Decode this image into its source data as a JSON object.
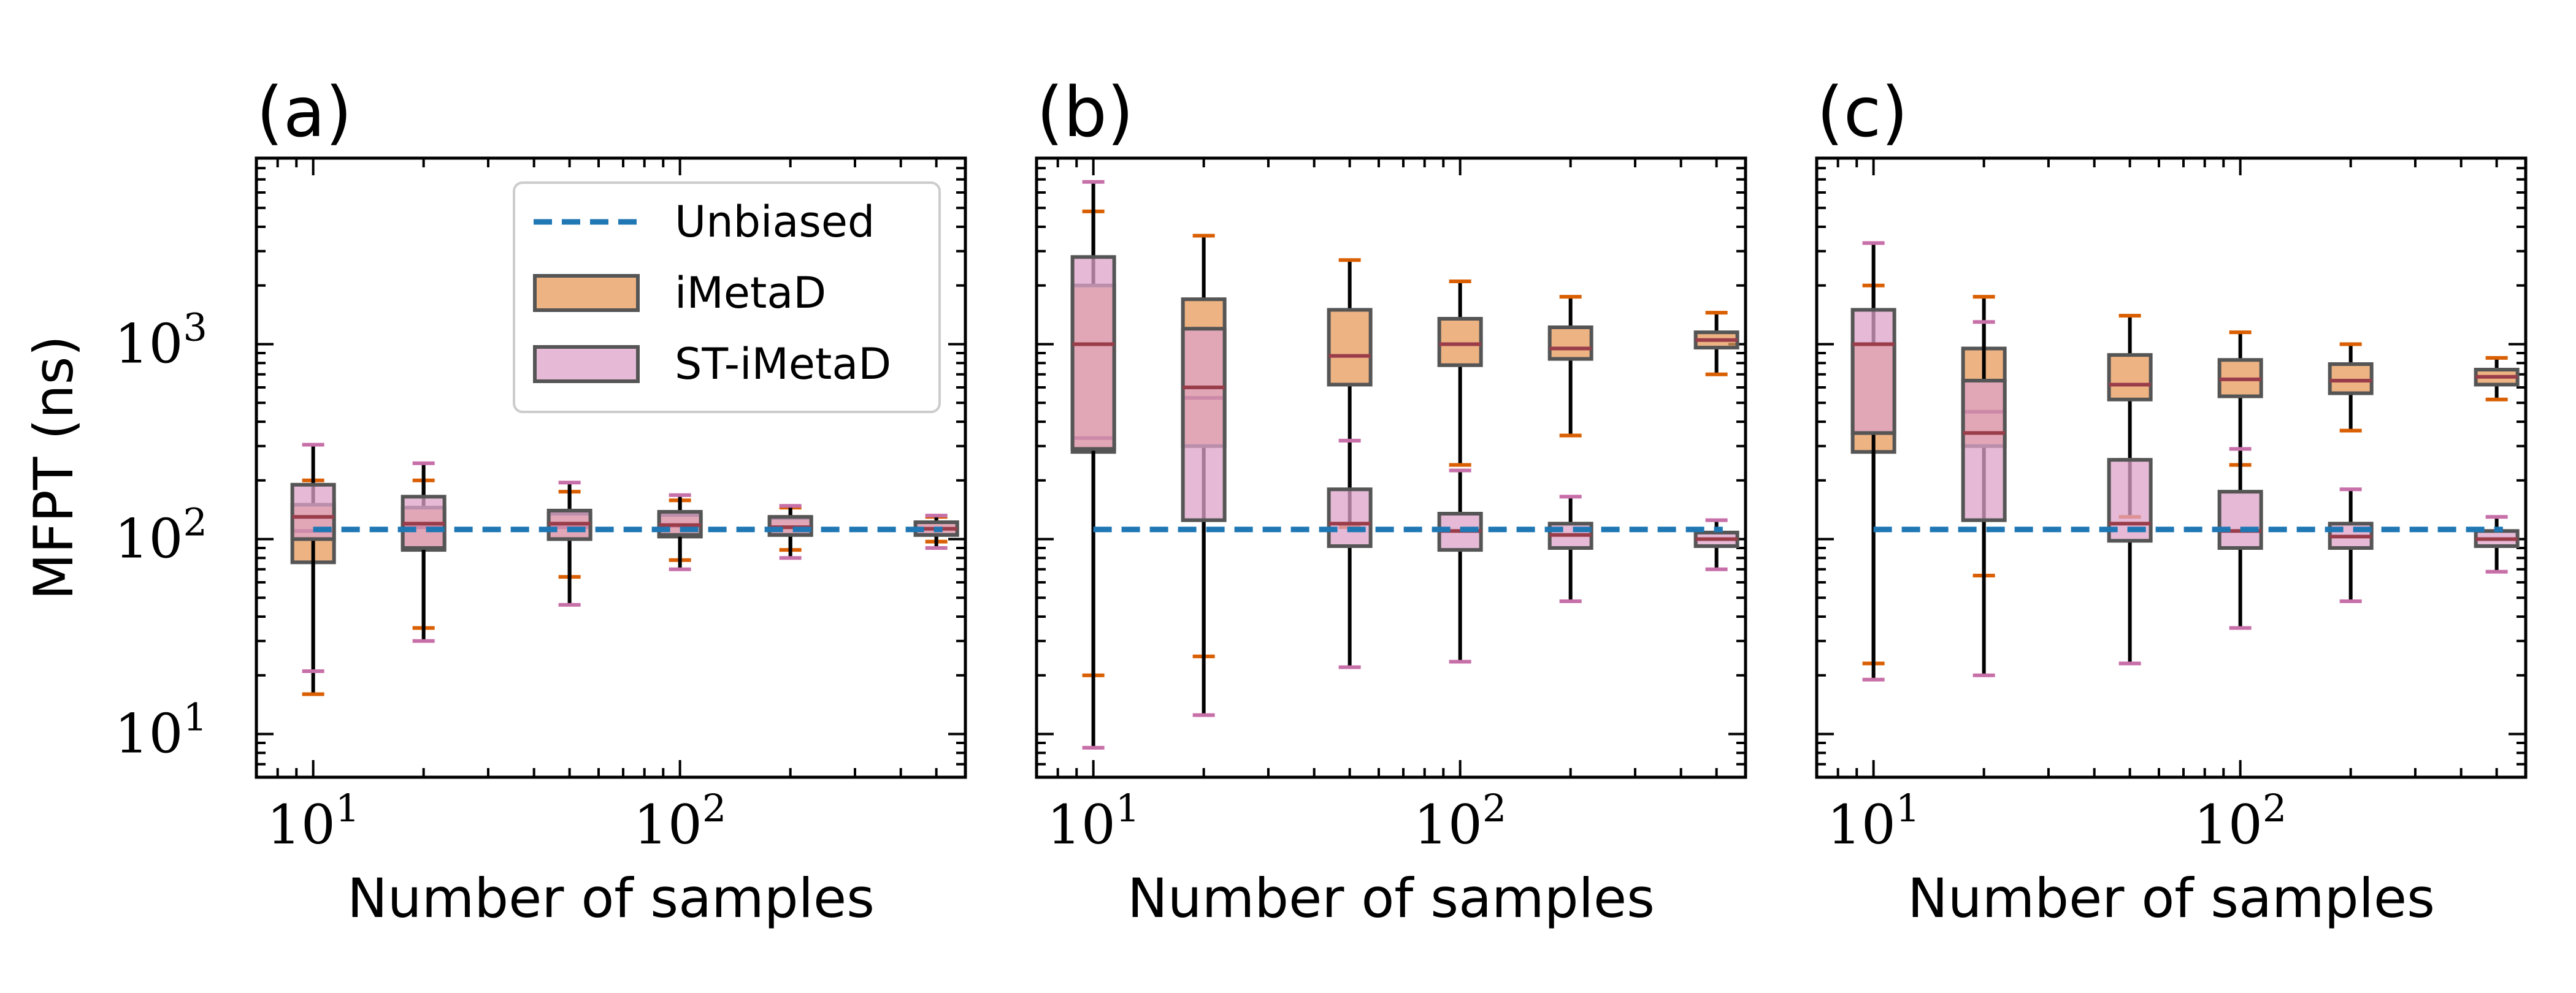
{
  "figure": {
    "ylabel": "MFPT (ns)",
    "colors": {
      "unbiased": "#1f77b4",
      "imetad_fill": "#e8995a",
      "imetad_cap": "#d95f02",
      "st_fill": "#dea3c8",
      "st_cap": "#c76fa8",
      "box_edge": "#555555",
      "median": "#9a3d4a",
      "whisker": "#000000"
    }
  },
  "chart_data": [
    {
      "type": "box",
      "panel": "(a)",
      "title": "(a)",
      "xlabel": "Number of samples",
      "ylabel": "MFPT (ns)",
      "xscale": "log",
      "yscale": "log",
      "xlim": [
        7,
        600
      ],
      "ylim": [
        6,
        9000
      ],
      "xticks": [
        10,
        100
      ],
      "xtick_labels": [
        {
          "base": "10",
          "exp": "1"
        },
        {
          "base": "10",
          "exp": "2"
        }
      ],
      "yticks": [
        10,
        100,
        1000
      ],
      "ytick_labels": [
        {
          "base": "10",
          "exp": "1"
        },
        {
          "base": "10",
          "exp": "2"
        },
        {
          "base": "10",
          "exp": "3"
        }
      ],
      "show_yticklabels": true,
      "legend": {
        "location": "upper right",
        "entries": [
          {
            "label": "Unbiased",
            "kind": "line"
          },
          {
            "label": "iMetaD",
            "kind": "imetad"
          },
          {
            "label": "ST-iMetaD",
            "kind": "st"
          }
        ]
      },
      "unbiased_mfpt": 112,
      "series": [
        {
          "name": "iMetaD",
          "boxes": [
            {
              "x": 10,
              "whislo": 16,
              "q1": 76,
              "med": 110,
              "q3": 150,
              "whishi": 200
            },
            {
              "x": 20,
              "whislo": 35,
              "q1": 88,
              "med": 115,
              "q3": 145,
              "whishi": 200
            },
            {
              "x": 50,
              "whislo": 64,
              "q1": 100,
              "med": 115,
              "q3": 135,
              "whishi": 175
            },
            {
              "x": 100,
              "whislo": 78,
              "q1": 103,
              "med": 117,
              "q3": 133,
              "whishi": 158
            },
            {
              "x": 200,
              "whislo": 88,
              "q1": 105,
              "med": 115,
              "q3": 128,
              "whishi": 145
            },
            {
              "x": 500,
              "whislo": 97,
              "q1": 105,
              "med": 113,
              "q3": 122,
              "whishi": 130
            }
          ]
        },
        {
          "name": "ST-iMetaD",
          "boxes": [
            {
              "x": 10,
              "whislo": 21,
              "q1": 100,
              "med": 130,
              "q3": 190,
              "whishi": 305
            },
            {
              "x": 20,
              "whislo": 30,
              "q1": 90,
              "med": 120,
              "q3": 165,
              "whishi": 245
            },
            {
              "x": 50,
              "whislo": 46,
              "q1": 100,
              "med": 120,
              "q3": 140,
              "whishi": 195
            },
            {
              "x": 100,
              "whislo": 70,
              "q1": 105,
              "med": 118,
              "q3": 138,
              "whishi": 168
            },
            {
              "x": 200,
              "whislo": 80,
              "q1": 105,
              "med": 115,
              "q3": 130,
              "whishi": 148
            },
            {
              "x": 500,
              "whislo": 90,
              "q1": 105,
              "med": 113,
              "q3": 122,
              "whishi": 132
            }
          ]
        }
      ]
    },
    {
      "type": "box",
      "panel": "(b)",
      "title": "(b)",
      "xlabel": "Number of samples",
      "xscale": "log",
      "yscale": "log",
      "xlim": [
        7,
        600
      ],
      "ylim": [
        6,
        9000
      ],
      "xticks": [
        10,
        100
      ],
      "xtick_labels": [
        {
          "base": "10",
          "exp": "1"
        },
        {
          "base": "10",
          "exp": "2"
        }
      ],
      "yticks": [
        10,
        100,
        1000
      ],
      "show_yticklabels": false,
      "unbiased_mfpt": 112,
      "series": [
        {
          "name": "iMetaD",
          "boxes": [
            {
              "x": 10,
              "whislo": 20,
              "q1": 280,
              "med": 330,
              "q3": 2000,
              "whishi": 4800
            },
            {
              "x": 20,
              "whislo": 25,
              "q1": 300,
              "med": 530,
              "q3": 1700,
              "whishi": 3600
            },
            {
              "x": 50,
              "whislo": 115,
              "q1": 620,
              "med": 870,
              "q3": 1500,
              "whishi": 2700
            },
            {
              "x": 100,
              "whislo": 240,
              "q1": 780,
              "med": 1000,
              "q3": 1350,
              "whishi": 2100
            },
            {
              "x": 200,
              "whislo": 340,
              "q1": 840,
              "med": 950,
              "q3": 1220,
              "whishi": 1750
            },
            {
              "x": 500,
              "whislo": 700,
              "q1": 960,
              "med": 1050,
              "q3": 1150,
              "whishi": 1450
            }
          ]
        },
        {
          "name": "ST-iMetaD",
          "boxes": [
            {
              "x": 10,
              "whislo": 8.5,
              "q1": 290,
              "med": 1000,
              "q3": 2800,
              "whishi": 6800
            },
            {
              "x": 20,
              "whislo": 12.5,
              "q1": 125,
              "med": 600,
              "q3": 1200,
              "whishi": 1200
            },
            {
              "x": 50,
              "whislo": 22,
              "q1": 92,
              "med": 120,
              "q3": 180,
              "whishi": 320
            },
            {
              "x": 100,
              "whislo": 23.5,
              "q1": 88,
              "med": 110,
              "q3": 135,
              "whishi": 225
            },
            {
              "x": 200,
              "whislo": 48,
              "q1": 90,
              "med": 105,
              "q3": 120,
              "whishi": 165
            },
            {
              "x": 500,
              "whislo": 70,
              "q1": 92,
              "med": 100,
              "q3": 108,
              "whishi": 125
            }
          ]
        }
      ]
    },
    {
      "type": "box",
      "panel": "(c)",
      "title": "(c)",
      "xlabel": "Number of samples",
      "xscale": "log",
      "yscale": "log",
      "xlim": [
        7,
        600
      ],
      "ylim": [
        6,
        9000
      ],
      "xticks": [
        10,
        100
      ],
      "xtick_labels": [
        {
          "base": "10",
          "exp": "1"
        },
        {
          "base": "10",
          "exp": "2"
        }
      ],
      "yticks": [
        10,
        100,
        1000
      ],
      "show_yticklabels": false,
      "unbiased_mfpt": 112,
      "series": [
        {
          "name": "iMetaD",
          "boxes": [
            {
              "x": 10,
              "whislo": 23,
              "q1": 280,
              "med": 350,
              "q3": 1000,
              "whishi": 2000
            },
            {
              "x": 20,
              "whislo": 65,
              "q1": 300,
              "med": 450,
              "q3": 950,
              "whishi": 1750
            },
            {
              "x": 50,
              "whislo": 130,
              "q1": 520,
              "med": 620,
              "q3": 880,
              "whishi": 1400
            },
            {
              "x": 100,
              "whislo": 240,
              "q1": 540,
              "med": 660,
              "q3": 830,
              "whishi": 1150
            },
            {
              "x": 200,
              "whislo": 360,
              "q1": 560,
              "med": 650,
              "q3": 790,
              "whishi": 1000
            },
            {
              "x": 500,
              "whislo": 520,
              "q1": 620,
              "med": 680,
              "q3": 740,
              "whishi": 850
            }
          ]
        },
        {
          "name": "ST-iMetaD",
          "boxes": [
            {
              "x": 10,
              "whislo": 19,
              "q1": 350,
              "med": 1000,
              "q3": 1500,
              "whishi": 3300
            },
            {
              "x": 20,
              "whislo": 20,
              "q1": 125,
              "med": 350,
              "q3": 650,
              "whishi": 1300
            },
            {
              "x": 50,
              "whislo": 23,
              "q1": 98,
              "med": 120,
              "q3": 255,
              "whishi": 255
            },
            {
              "x": 100,
              "whislo": 35,
              "q1": 90,
              "med": 110,
              "q3": 175,
              "whishi": 290
            },
            {
              "x": 200,
              "whislo": 48,
              "q1": 90,
              "med": 103,
              "q3": 120,
              "whishi": 180
            },
            {
              "x": 500,
              "whislo": 68,
              "q1": 92,
              "med": 100,
              "q3": 110,
              "whishi": 130
            }
          ]
        }
      ]
    }
  ]
}
